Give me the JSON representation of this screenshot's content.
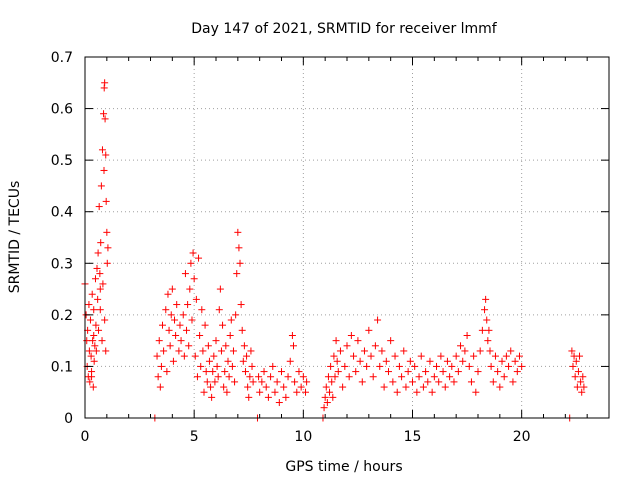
{
  "chart_data": {
    "type": "scatter",
    "title": "Day 147 of 2021, SRMTID for receiver lmmf",
    "xlabel": "GPS time / hours",
    "ylabel": "SRMTID / TECUs",
    "xlim": [
      0,
      24
    ],
    "ylim": [
      0,
      0.7
    ],
    "xticks": [
      "0",
      "5",
      "10",
      "15",
      "20"
    ],
    "yticks": [
      "0",
      "0.1",
      "0.2",
      "0.3",
      "0.4",
      "0.5",
      "0.6",
      "0.7"
    ],
    "grid": true,
    "marker": "+",
    "color": "#ff0000",
    "series": [
      {
        "name": "SRMTID",
        "points": [
          [
            0.0,
            0.26
          ],
          [
            0.05,
            0.2
          ],
          [
            0.08,
            0.15
          ],
          [
            0.1,
            0.1
          ],
          [
            0.12,
            0.17
          ],
          [
            0.15,
            0.08
          ],
          [
            0.18,
            0.22
          ],
          [
            0.2,
            0.13
          ],
          [
            0.22,
            0.07
          ],
          [
            0.25,
            0.19
          ],
          [
            0.28,
            0.12
          ],
          [
            0.3,
            0.09
          ],
          [
            0.33,
            0.24
          ],
          [
            0.35,
            0.15
          ],
          [
            0.38,
            0.06
          ],
          [
            0.4,
            0.21
          ],
          [
            0.42,
            0.11
          ],
          [
            0.45,
            0.14
          ],
          [
            0.48,
            0.27
          ],
          [
            0.5,
            0.18
          ],
          [
            0.52,
            0.13
          ],
          [
            0.55,
            0.29
          ],
          [
            0.58,
            0.23
          ],
          [
            0.6,
            0.32
          ],
          [
            0.62,
            0.17
          ],
          [
            0.65,
            0.41
          ],
          [
            0.68,
            0.28
          ],
          [
            0.7,
            0.21
          ],
          [
            0.72,
            0.34
          ],
          [
            0.75,
            0.45
          ],
          [
            0.78,
            0.15
          ],
          [
            0.8,
            0.52
          ],
          [
            0.82,
            0.26
          ],
          [
            0.85,
            0.59
          ],
          [
            0.87,
            0.48
          ],
          [
            0.88,
            0.64
          ],
          [
            0.9,
            0.65
          ],
          [
            0.92,
            0.58
          ],
          [
            0.95,
            0.51
          ],
          [
            0.97,
            0.42
          ],
          [
            1.0,
            0.36
          ],
          [
            1.02,
            0.3
          ],
          [
            1.05,
            0.33
          ],
          [
            0.9,
            0.19
          ],
          [
            0.95,
            0.13
          ],
          [
            0.7,
            0.25
          ],
          [
            0.4,
            0.16
          ],
          [
            0.3,
            0.08
          ],
          [
            3.2,
            0.0
          ],
          [
            3.3,
            0.12
          ],
          [
            3.35,
            0.08
          ],
          [
            3.4,
            0.15
          ],
          [
            3.45,
            0.06
          ],
          [
            3.5,
            0.1
          ],
          [
            3.55,
            0.18
          ],
          [
            3.6,
            0.13
          ],
          [
            3.7,
            0.21
          ],
          [
            3.75,
            0.09
          ],
          [
            3.8,
            0.24
          ],
          [
            3.85,
            0.17
          ],
          [
            3.9,
            0.14
          ],
          [
            3.95,
            0.2
          ],
          [
            4.0,
            0.25
          ],
          [
            4.05,
            0.11
          ],
          [
            4.1,
            0.19
          ],
          [
            4.15,
            0.16
          ],
          [
            4.2,
            0.22
          ],
          [
            4.3,
            0.13
          ],
          [
            4.35,
            0.18
          ],
          [
            4.4,
            0.15
          ],
          [
            4.5,
            0.2
          ],
          [
            4.55,
            0.12
          ],
          [
            4.6,
            0.28
          ],
          [
            4.65,
            0.17
          ],
          [
            4.7,
            0.22
          ],
          [
            4.75,
            0.14
          ],
          [
            4.8,
            0.25
          ],
          [
            4.85,
            0.3
          ],
          [
            4.9,
            0.19
          ],
          [
            4.95,
            0.32
          ],
          [
            5.0,
            0.27
          ],
          [
            5.05,
            0.12
          ],
          [
            5.1,
            0.23
          ],
          [
            5.15,
            0.08
          ],
          [
            5.2,
            0.31
          ],
          [
            5.25,
            0.16
          ],
          [
            5.3,
            0.1
          ],
          [
            5.35,
            0.21
          ],
          [
            5.4,
            0.13
          ],
          [
            5.45,
            0.05
          ],
          [
            5.5,
            0.18
          ],
          [
            5.55,
            0.09
          ],
          [
            5.6,
            0.07
          ],
          [
            5.65,
            0.14
          ],
          [
            5.7,
            0.11
          ],
          [
            5.75,
            0.06
          ],
          [
            5.8,
            0.04
          ],
          [
            5.85,
            0.09
          ],
          [
            5.9,
            0.12
          ],
          [
            5.95,
            0.07
          ],
          [
            6.0,
            0.15
          ],
          [
            6.05,
            0.1
          ],
          [
            6.1,
            0.08
          ],
          [
            6.15,
            0.21
          ],
          [
            6.2,
            0.25
          ],
          [
            6.25,
            0.13
          ],
          [
            6.3,
            0.18
          ],
          [
            6.35,
            0.06
          ],
          [
            6.4,
            0.09
          ],
          [
            6.45,
            0.14
          ],
          [
            6.5,
            0.05
          ],
          [
            6.55,
            0.11
          ],
          [
            6.6,
            0.08
          ],
          [
            6.65,
            0.16
          ],
          [
            6.7,
            0.19
          ],
          [
            6.75,
            0.1
          ],
          [
            6.8,
            0.13
          ],
          [
            6.85,
            0.07
          ],
          [
            6.9,
            0.2
          ],
          [
            6.95,
            0.28
          ],
          [
            7.0,
            0.36
          ],
          [
            7.05,
            0.33
          ],
          [
            7.1,
            0.3
          ],
          [
            7.15,
            0.22
          ],
          [
            7.2,
            0.17
          ],
          [
            7.25,
            0.11
          ],
          [
            7.3,
            0.14
          ],
          [
            7.35,
            0.09
          ],
          [
            7.4,
            0.12
          ],
          [
            7.45,
            0.06
          ],
          [
            7.5,
            0.04
          ],
          [
            7.55,
            0.08
          ],
          [
            7.6,
            0.13
          ],
          [
            7.65,
            0.1
          ],
          [
            7.7,
            0.07
          ],
          [
            7.9,
            0.0
          ],
          [
            7.95,
            0.08
          ],
          [
            8.0,
            0.05
          ],
          [
            8.1,
            0.07
          ],
          [
            8.2,
            0.09
          ],
          [
            8.3,
            0.06
          ],
          [
            8.4,
            0.04
          ],
          [
            8.5,
            0.08
          ],
          [
            8.6,
            0.1
          ],
          [
            8.7,
            0.05
          ],
          [
            8.8,
            0.07
          ],
          [
            8.9,
            0.03
          ],
          [
            9.0,
            0.09
          ],
          [
            9.1,
            0.06
          ],
          [
            9.2,
            0.04
          ],
          [
            9.3,
            0.08
          ],
          [
            9.4,
            0.11
          ],
          [
            9.5,
            0.16
          ],
          [
            9.55,
            0.14
          ],
          [
            9.6,
            0.07
          ],
          [
            9.7,
            0.05
          ],
          [
            9.8,
            0.09
          ],
          [
            9.9,
            0.06
          ],
          [
            10.0,
            0.08
          ],
          [
            10.1,
            0.05
          ],
          [
            10.15,
            0.07
          ],
          [
            10.9,
            0.0
          ],
          [
            10.95,
            0.02
          ],
          [
            11.0,
            0.04
          ],
          [
            11.05,
            0.06
          ],
          [
            11.1,
            0.03
          ],
          [
            11.15,
            0.08
          ],
          [
            11.2,
            0.05
          ],
          [
            11.25,
            0.1
          ],
          [
            11.3,
            0.07
          ],
          [
            11.35,
            0.04
          ],
          [
            11.4,
            0.12
          ],
          [
            11.45,
            0.08
          ],
          [
            11.5,
            0.15
          ],
          [
            11.55,
            0.11
          ],
          [
            11.6,
            0.09
          ],
          [
            11.7,
            0.13
          ],
          [
            11.8,
            0.06
          ],
          [
            11.9,
            0.1
          ],
          [
            12.0,
            0.14
          ],
          [
            12.1,
            0.08
          ],
          [
            12.2,
            0.16
          ],
          [
            12.3,
            0.12
          ],
          [
            12.4,
            0.09
          ],
          [
            12.5,
            0.15
          ],
          [
            12.6,
            0.11
          ],
          [
            12.7,
            0.07
          ],
          [
            12.8,
            0.13
          ],
          [
            12.9,
            0.1
          ],
          [
            13.0,
            0.17
          ],
          [
            13.1,
            0.12
          ],
          [
            13.2,
            0.08
          ],
          [
            13.3,
            0.14
          ],
          [
            13.4,
            0.19
          ],
          [
            13.5,
            0.1
          ],
          [
            13.6,
            0.13
          ],
          [
            13.7,
            0.06
          ],
          [
            13.8,
            0.11
          ],
          [
            13.9,
            0.09
          ],
          [
            14.0,
            0.15
          ],
          [
            14.1,
            0.07
          ],
          [
            14.2,
            0.12
          ],
          [
            14.3,
            0.05
          ],
          [
            14.4,
            0.1
          ],
          [
            14.5,
            0.08
          ],
          [
            14.6,
            0.13
          ],
          [
            14.7,
            0.06
          ],
          [
            14.8,
            0.09
          ],
          [
            14.9,
            0.11
          ],
          [
            15.0,
            0.07
          ],
          [
            15.1,
            0.1
          ],
          [
            15.2,
            0.05
          ],
          [
            15.3,
            0.08
          ],
          [
            15.4,
            0.12
          ],
          [
            15.5,
            0.06
          ],
          [
            15.6,
            0.09
          ],
          [
            15.7,
            0.07
          ],
          [
            15.8,
            0.11
          ],
          [
            15.9,
            0.05
          ],
          [
            16.0,
            0.08
          ],
          [
            16.1,
            0.1
          ],
          [
            16.2,
            0.07
          ],
          [
            16.3,
            0.12
          ],
          [
            16.4,
            0.09
          ],
          [
            16.5,
            0.06
          ],
          [
            16.6,
            0.11
          ],
          [
            16.7,
            0.08
          ],
          [
            16.8,
            0.1
          ],
          [
            16.9,
            0.07
          ],
          [
            17.0,
            0.12
          ],
          [
            17.1,
            0.09
          ],
          [
            17.2,
            0.14
          ],
          [
            17.3,
            0.11
          ],
          [
            17.4,
            0.13
          ],
          [
            17.5,
            0.16
          ],
          [
            17.6,
            0.1
          ],
          [
            17.7,
            0.07
          ],
          [
            17.8,
            0.12
          ],
          [
            17.9,
            0.05
          ],
          [
            18.0,
            0.09
          ],
          [
            18.1,
            0.13
          ],
          [
            18.2,
            0.17
          ],
          [
            18.3,
            0.21
          ],
          [
            18.35,
            0.23
          ],
          [
            18.4,
            0.19
          ],
          [
            18.45,
            0.15
          ],
          [
            18.5,
            0.17
          ],
          [
            18.55,
            0.13
          ],
          [
            18.6,
            0.1
          ],
          [
            18.7,
            0.07
          ],
          [
            18.8,
            0.12
          ],
          [
            18.9,
            0.09
          ],
          [
            19.0,
            0.06
          ],
          [
            19.1,
            0.11
          ],
          [
            19.2,
            0.08
          ],
          [
            19.3,
            0.12
          ],
          [
            19.4,
            0.1
          ],
          [
            19.5,
            0.13
          ],
          [
            19.6,
            0.07
          ],
          [
            19.7,
            0.11
          ],
          [
            19.8,
            0.09
          ],
          [
            19.9,
            0.12
          ],
          [
            20.0,
            0.1
          ],
          [
            22.2,
            0.0
          ],
          [
            22.3,
            0.13
          ],
          [
            22.35,
            0.1
          ],
          [
            22.4,
            0.12
          ],
          [
            22.45,
            0.08
          ],
          [
            22.5,
            0.11
          ],
          [
            22.55,
            0.06
          ],
          [
            22.6,
            0.09
          ],
          [
            22.65,
            0.12
          ],
          [
            22.7,
            0.07
          ],
          [
            22.75,
            0.05
          ],
          [
            22.8,
            0.08
          ],
          [
            22.85,
            0.06
          ]
        ]
      }
    ]
  }
}
